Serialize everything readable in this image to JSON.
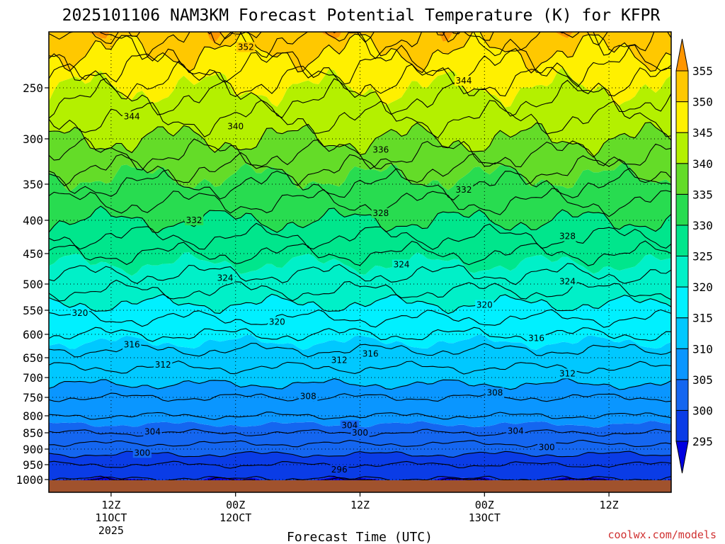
{
  "chart_data": {
    "type": "heatmap",
    "title": "2025101106 NAM3KM Forecast Potential Temperature (K) for KFPR",
    "xlabel": "Forecast Time (UTC)",
    "ylabel": "",
    "credit": "coolwx.com/models",
    "y_ticks": [
      "250",
      "300",
      "350",
      "400",
      "450",
      "500",
      "550",
      "600",
      "650",
      "700",
      "750",
      "800",
      "850",
      "900",
      "950",
      "1000"
    ],
    "x_ticks": [
      {
        "hour": 6,
        "lines": [
          "12Z",
          "11OCT",
          "2025"
        ]
      },
      {
        "hour": 18,
        "lines": [
          "00Z",
          "12OCT"
        ]
      },
      {
        "hour": 30,
        "lines": [
          "12Z"
        ]
      },
      {
        "hour": 42,
        "lines": [
          "00Z",
          "13OCT"
        ]
      },
      {
        "hour": 54,
        "lines": [
          "12Z"
        ]
      }
    ],
    "x_range_hours": [
      0,
      60
    ],
    "y_range_hpa": [
      200,
      1020
    ],
    "colorbar": {
      "levels": [
        295,
        300,
        305,
        310,
        315,
        320,
        325,
        330,
        335,
        340,
        345,
        350,
        355
      ],
      "labels": [
        "295",
        "300",
        "305",
        "310",
        "315",
        "320",
        "325",
        "330",
        "335",
        "340",
        "345",
        "350",
        "355"
      ],
      "colors": [
        "#0000e0",
        "#0a3ce6",
        "#1466f0",
        "#0a96ff",
        "#00c8ff",
        "#00f0ff",
        "#00f0c8",
        "#00e68c",
        "#28dc50",
        "#64dc28",
        "#b4f000",
        "#fff000",
        "#ffc800",
        "#ff9600"
      ]
    },
    "profile_theta_at_pressure": {
      "pressure_hpa": [
        1000,
        950,
        900,
        850,
        800,
        750,
        700,
        650,
        600,
        550,
        500,
        450,
        400,
        350,
        300,
        250,
        200
      ],
      "theta_k": [
        296,
        298,
        301,
        304,
        306,
        308,
        311,
        313,
        316,
        319,
        323,
        326,
        330,
        334,
        340,
        345,
        352
      ]
    },
    "contour_labels": [
      {
        "text": "352",
        "hour": 19,
        "hpa": 210
      },
      {
        "text": "344",
        "hour": 8,
        "hpa": 278
      },
      {
        "text": "344",
        "hour": 40,
        "hpa": 243
      },
      {
        "text": "340",
        "hour": 18,
        "hpa": 288
      },
      {
        "text": "336",
        "hour": 32,
        "hpa": 312
      },
      {
        "text": "332",
        "hour": 40,
        "hpa": 358
      },
      {
        "text": "332",
        "hour": 14,
        "hpa": 400
      },
      {
        "text": "328",
        "hour": 32,
        "hpa": 390
      },
      {
        "text": "328",
        "hour": 50,
        "hpa": 424
      },
      {
        "text": "324",
        "hour": 34,
        "hpa": 468
      },
      {
        "text": "324",
        "hour": 17,
        "hpa": 490
      },
      {
        "text": "324",
        "hour": 50,
        "hpa": 496
      },
      {
        "text": "320",
        "hour": 3,
        "hpa": 556
      },
      {
        "text": "320",
        "hour": 22,
        "hpa": 574
      },
      {
        "text": "320",
        "hour": 42,
        "hpa": 540
      },
      {
        "text": "316",
        "hour": 8,
        "hpa": 622
      },
      {
        "text": "316",
        "hour": 31,
        "hpa": 642
      },
      {
        "text": "316",
        "hour": 47,
        "hpa": 608
      },
      {
        "text": "312",
        "hour": 11,
        "hpa": 668
      },
      {
        "text": "312",
        "hour": 28,
        "hpa": 656
      },
      {
        "text": "312",
        "hour": 50,
        "hpa": 690
      },
      {
        "text": "308",
        "hour": 25,
        "hpa": 747
      },
      {
        "text": "308",
        "hour": 43,
        "hpa": 738
      },
      {
        "text": "304",
        "hour": 10,
        "hpa": 847
      },
      {
        "text": "304",
        "hour": 29,
        "hpa": 828
      },
      {
        "text": "304",
        "hour": 45,
        "hpa": 845
      },
      {
        "text": "300",
        "hour": 30,
        "hpa": 850
      },
      {
        "text": "300",
        "hour": 9,
        "hpa": 912
      },
      {
        "text": "300",
        "hour": 48,
        "hpa": 895
      },
      {
        "text": "296",
        "hour": 28,
        "hpa": 967
      }
    ]
  }
}
